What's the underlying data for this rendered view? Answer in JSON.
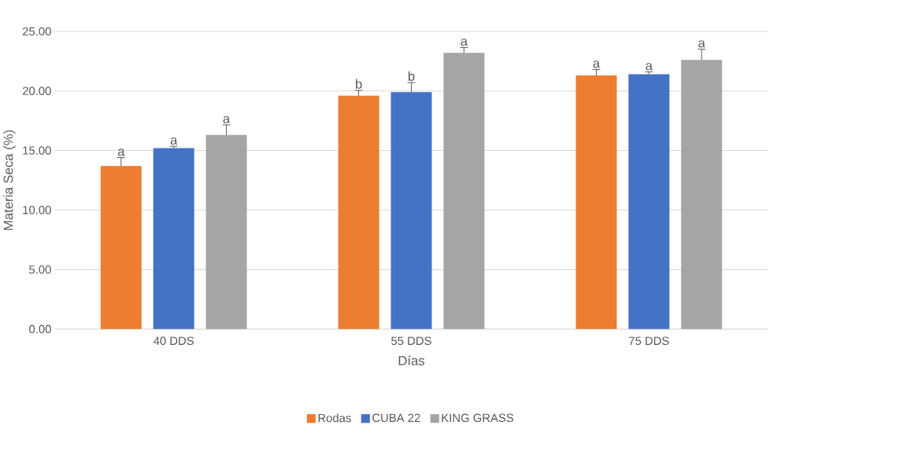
{
  "chart_data": {
    "type": "bar",
    "xlabel": "Días",
    "ylabel": "Materia Seca (%)",
    "categories": [
      "40 DDS",
      "55 DDS",
      "75 DDS"
    ],
    "ylim": [
      0,
      25
    ],
    "yticks": [
      {
        "value": 0,
        "label": "0.00"
      },
      {
        "value": 5,
        "label": "5.00"
      },
      {
        "value": 10,
        "label": "10.00"
      },
      {
        "value": 15,
        "label": "15.00"
      },
      {
        "value": 20,
        "label": "20.00"
      },
      {
        "value": 25,
        "label": "25.00"
      }
    ],
    "grid": "y",
    "legend": "bottom",
    "series": [
      {
        "name": "Rodas",
        "color": "#ed7d31",
        "values": [
          13.7,
          19.6,
          21.3
        ],
        "errors": [
          0.7,
          0.45,
          0.5
        ],
        "value_labels": [
          "a",
          "b",
          "a"
        ]
      },
      {
        "name": "CUBA 22",
        "color": "#4472c4",
        "values": [
          15.2,
          19.9,
          21.4
        ],
        "errors": [
          0.15,
          0.8,
          0.2
        ],
        "value_labels": [
          "a",
          "b",
          "a"
        ]
      },
      {
        "name": "KING GRASS",
        "color": "#a5a5a5",
        "values": [
          16.3,
          23.2,
          22.6
        ],
        "errors": [
          0.85,
          0.45,
          0.9
        ],
        "value_labels": [
          "a",
          "a",
          "a"
        ]
      }
    ]
  }
}
